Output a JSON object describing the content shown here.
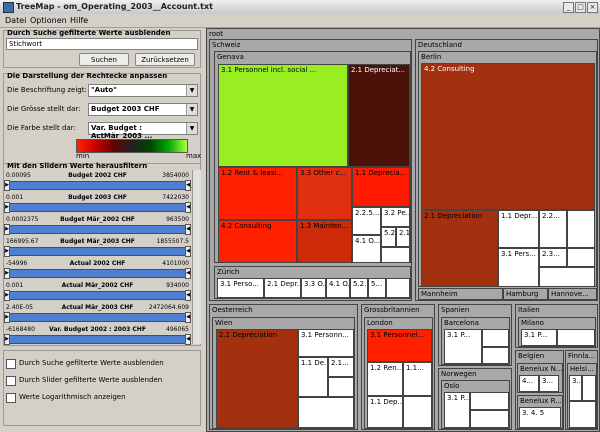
{
  "window": {
    "title": "TreeMap - om_Operating_2003__Account.txt"
  },
  "menu": [
    "Datei",
    "Optionen",
    "Hilfe"
  ],
  "search": {
    "group_title": "Durch Suche gefilterte Werte ausblenden",
    "value": "Stichwort",
    "search_button": "Suchen",
    "reset_button": "Zurücksetzen"
  },
  "display": {
    "group_title": "Die Darstellung der Rechtecke anpassen",
    "label_caption": "Die Beschriftung zeigt:",
    "label_value": "\"Auto\"",
    "size_caption": "Die Grösse stellt dar:",
    "size_value": "Budget 2003 CHF",
    "color_caption": "Die Farbe stellt dar:",
    "color_value": "Var. Budget : ActMär_2003 ...",
    "legend_min": "min",
    "legend_max": "max"
  },
  "sliders": {
    "group_title": "Mit den Slidern Werte herausfiltern",
    "items": [
      {
        "min": "0.00095",
        "name": "Budget 2002 CHF",
        "max": "3854000"
      },
      {
        "min": "0.001",
        "name": "Budget 2003 CHF",
        "max": "7422030"
      },
      {
        "min": "0.0002375",
        "name": "Budget Mär_2002 CHF",
        "max": "963500"
      },
      {
        "min": "166995.67",
        "name": "Budget Mär_2003 CHF",
        "max": "1855507.5"
      },
      {
        "min": "-54996",
        "name": "Actual 2002 CHF",
        "max": "4101000"
      },
      {
        "min": "0.001",
        "name": "Actual Mär_2002 CHF",
        "max": "934000"
      },
      {
        "min": "2.40E-05",
        "name": "Actual Mär_2003 CHF",
        "max": "2472064.609"
      },
      {
        "min": "-6168480",
        "name": "Var. Budget 2002 : 2003 CHF",
        "max": "496065"
      }
    ]
  },
  "options": [
    "Durch Suche gefilterte Werte ausblenden",
    "Durch Slider gefilterte Werte ausblenden",
    "Werte Logarithmisch anzeigen"
  ],
  "treemap": {
    "root": "root",
    "schweiz": "Schweiz",
    "genf": "Genava",
    "genf_personnel": "3.1 Personnel incl. social ...",
    "genf_depreciat": "2.1 Depreciat...",
    "genf_rent": "1.2 Rent & leasi...",
    "genf_other": "3.3 Other c...",
    "genf_deprecia2": "1.1 Deprecia...",
    "genf_consulting": "4.2 Consulting",
    "genf_mainten": "1.3 Mainten...",
    "genf_s1": "2.2.5...",
    "genf_s2": "3.2 Pe...",
    "genf_s3": "4.1 O...",
    "genf_s4": "5.2...",
    "genf_s5": "2.1...",
    "zurich": "Zürich",
    "zurich_l1": "3.1 Perso...",
    "zurich_l2": "2.1 Depr...",
    "zurich_l3": "3.3 O...",
    "zurich_l4": "4.1 O...",
    "zurich_l5": "5.2...",
    "zurich_l6": "5...",
    "deutschland": "Deutschland",
    "berlin": "Berlin",
    "berlin_consulting": "4.2 Consulting",
    "berlin_depreciation": "2.1 Depreciation",
    "berlin_l1": "1.1 Depr...",
    "berlin_l2": "2.2...",
    "berlin_l3": "3.1 Pers...",
    "berlin_l4": "2.3...",
    "mannheim": "Mannheim",
    "hamburg": "Hamburg",
    "hannover": "Hannove...",
    "oesterreich": "Oesterreich",
    "wien": "Wien",
    "wien_depreciation": "2.1 Depreciation",
    "wien_l1": "3.1 Personn...",
    "wien_l2": "1.1 De...",
    "wien_l3": "2.1...",
    "grossbritannien": "Grossbritannien",
    "london": "London",
    "london_l1": "3.1 Personnel...",
    "london_l2": "1.2 Ren...",
    "london_l3": "1.1...",
    "london_l4": "1.1 Dep...",
    "spanien": "Spanien",
    "barcelona": "Barcelona",
    "barcelona_l1": "3.1 P...",
    "norwegen": "Norwegen",
    "oslo": "Oslo",
    "oslo_l1": "3.1 P...",
    "italien": "Italien",
    "milano": "Milano",
    "milano_l1": "3.1 P...",
    "belgien": "Belgien",
    "benelux1": "Benelux N...",
    "benelux2": "Benelux R...",
    "benelux_l1": "4...",
    "benelux_l2": "3...",
    "finnland": "Finnla...",
    "helsinki": "Helsi...",
    "helsinki_l1": "3...",
    "benelux_l3": "3. 4. 5"
  },
  "colors": {
    "green": "#99ee22",
    "red": "#ff1a00",
    "dark_red": "#7a1408",
    "brown": "#a3300f"
  }
}
